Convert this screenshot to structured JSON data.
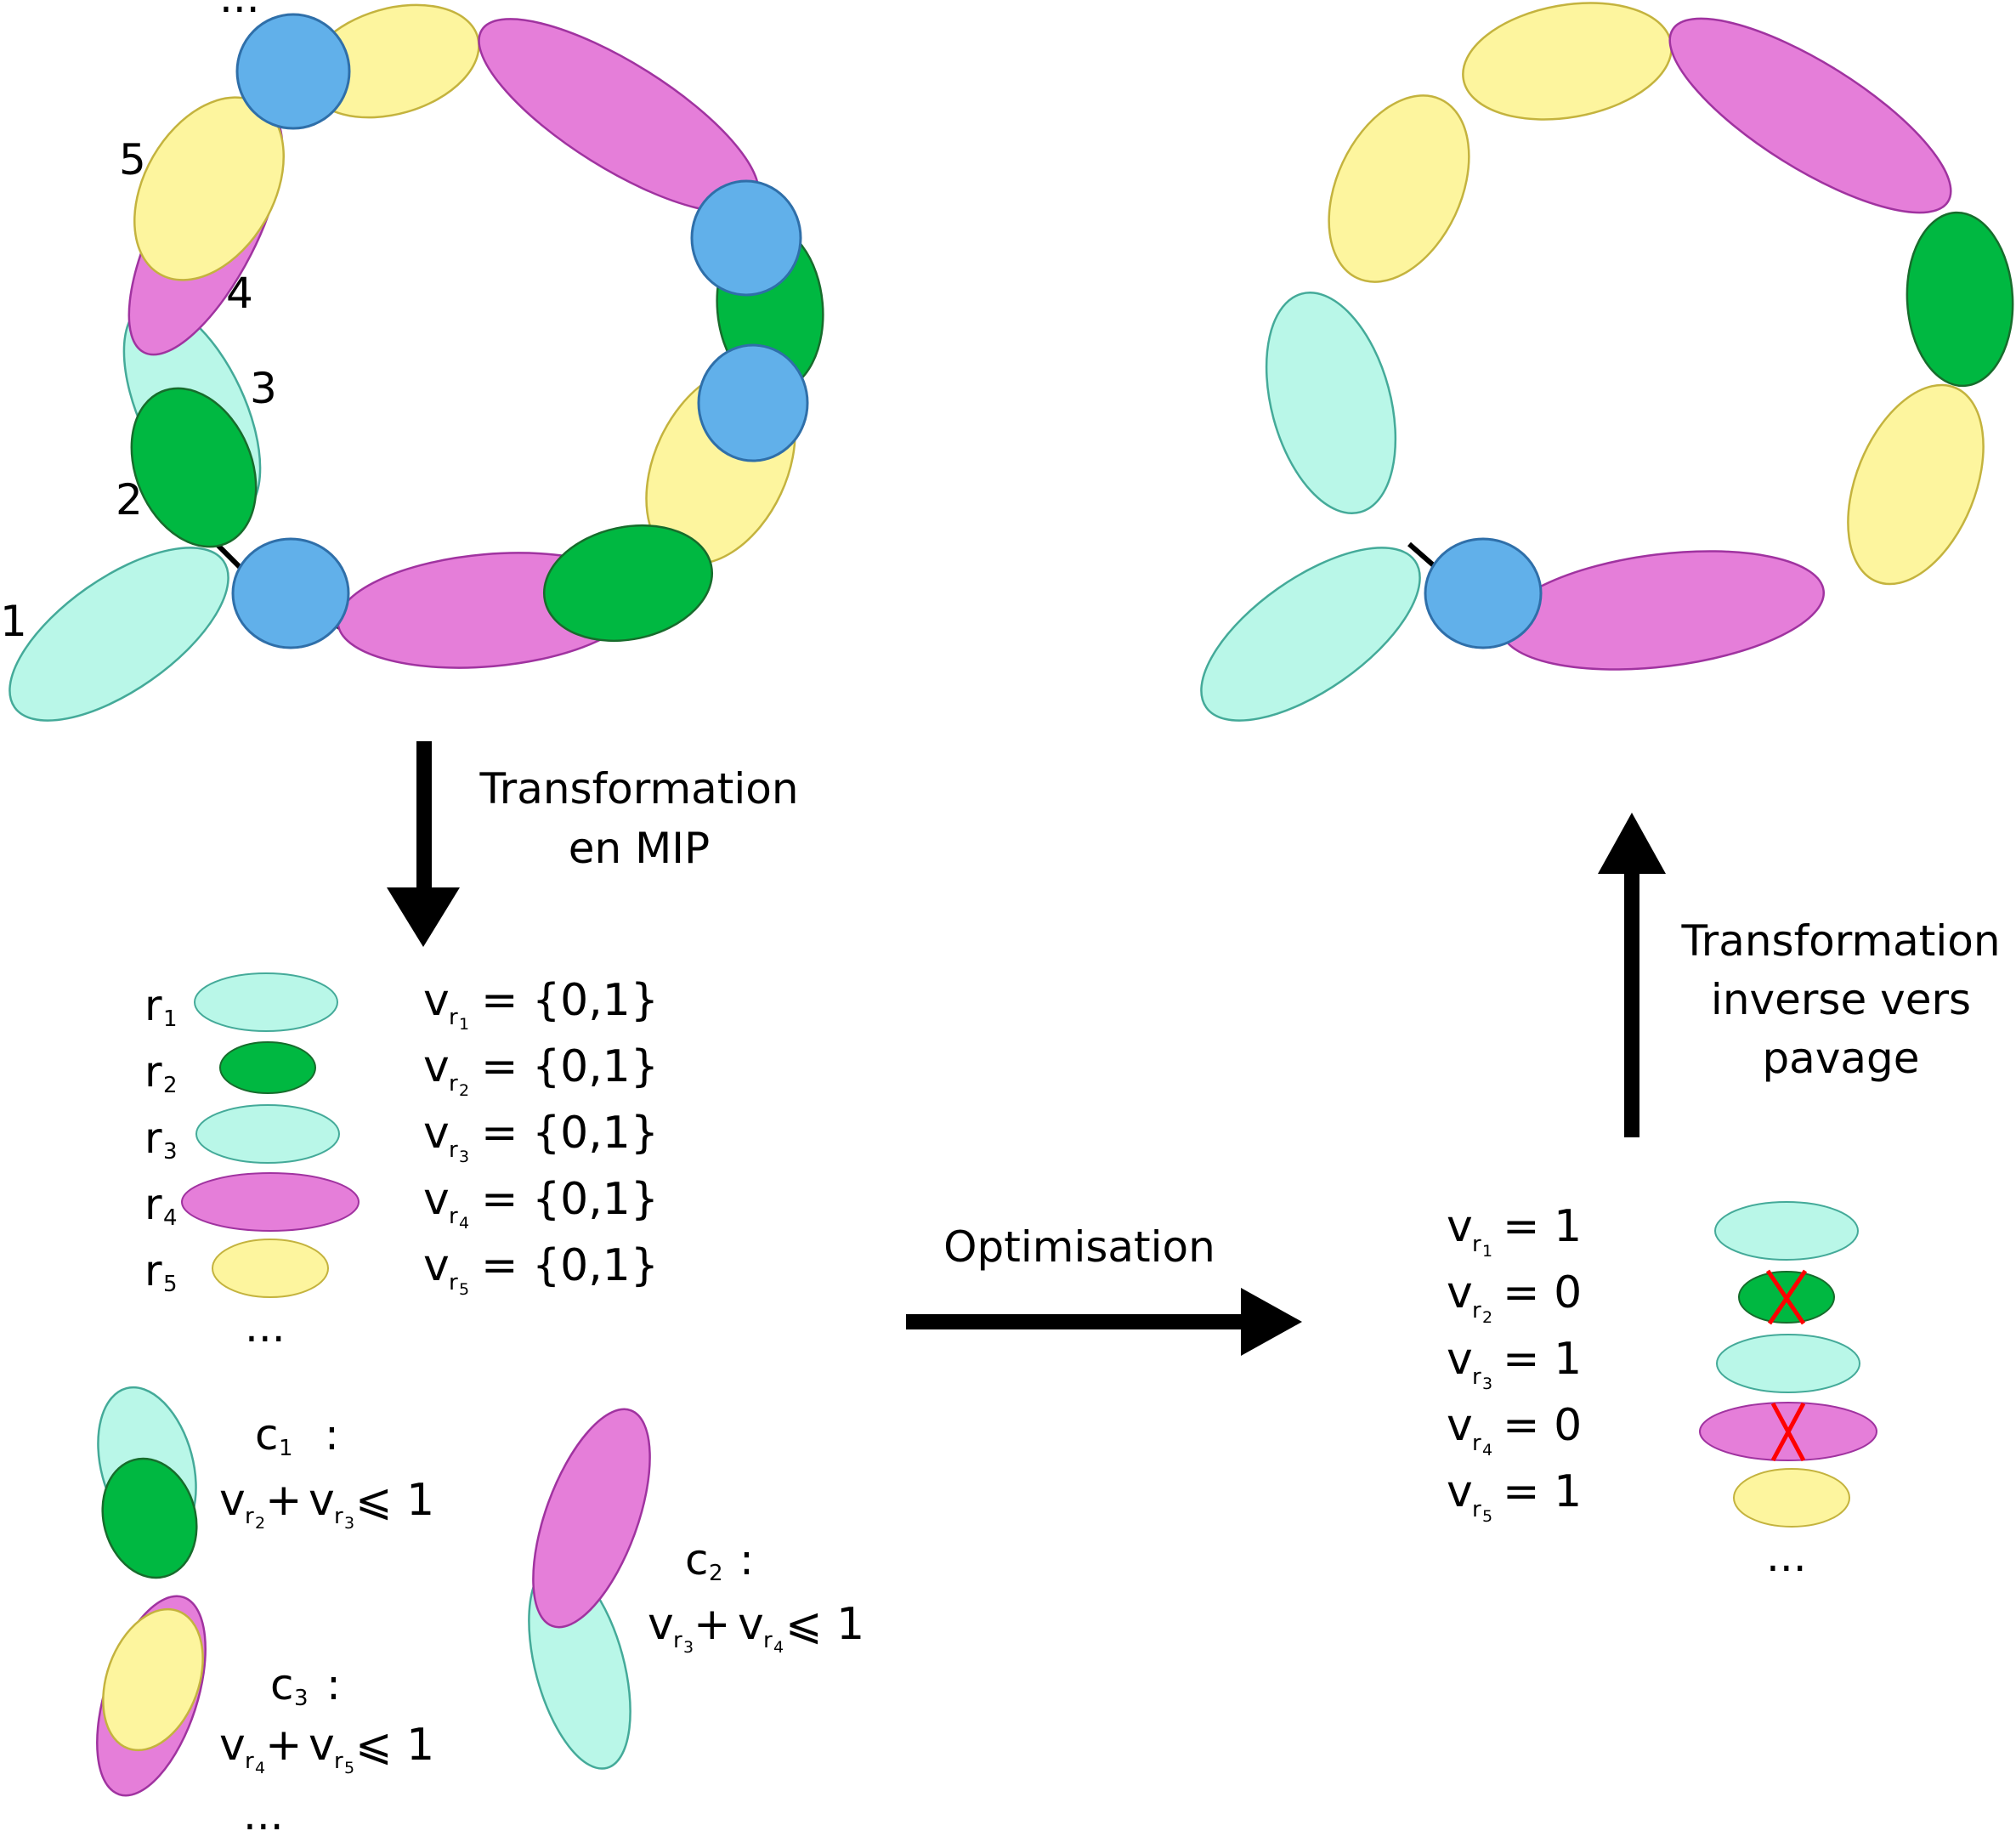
{
  "colors": {
    "cyan_fill": "#b9f7e8",
    "cyan_stroke": "#44aa99",
    "green_fill": "#00b841",
    "green_stroke": "#176c2c",
    "magenta_fill": "#e57ed9",
    "magenta_stroke": "#a033a0",
    "yellow_fill": "#fdf59e",
    "yellow_stroke": "#c4b33e",
    "blue_fill": "#61b0ea",
    "blue_stroke": "#2f6fa9",
    "cross": "#ff0000"
  },
  "left_tiling": {
    "labels": [
      "1",
      "2",
      "3",
      "4",
      "5",
      "..."
    ]
  },
  "step1": {
    "line1": "Transformation",
    "line2": "en MIP"
  },
  "variables": {
    "rows": [
      {
        "r": "r",
        "idx": "1",
        "v": "v",
        "vsub": "r",
        "vsubsub": "1",
        "domain": "= {0,1}"
      },
      {
        "r": "r",
        "idx": "2",
        "v": "v",
        "vsub": "r",
        "vsubsub": "2",
        "domain": "= {0,1}"
      },
      {
        "r": "r",
        "idx": "3",
        "v": "v",
        "vsub": "r",
        "vsubsub": "3",
        "domain": "= {0,1}"
      },
      {
        "r": "r",
        "idx": "4",
        "v": "v",
        "vsub": "r",
        "vsubsub": "4",
        "domain": "= {0,1}"
      },
      {
        "r": "r",
        "idx": "5",
        "v": "v",
        "vsub": "r",
        "vsubsub": "5",
        "domain": "= {0,1}"
      }
    ],
    "ellipsis": "..."
  },
  "constraints": {
    "c1": {
      "name": "c",
      "idx": "1",
      "colon": ":",
      "a": "v",
      "asub": "r",
      "asubsub": "2",
      "plus": "+",
      "b": "v",
      "bsub": "r",
      "bsubsub": "3",
      "rhs": "⩽ 1"
    },
    "c2": {
      "name": "c",
      "idx": "2",
      "colon": ":",
      "a": "v",
      "asub": "r",
      "asubsub": "3",
      "plus": "+",
      "b": "v",
      "bsub": "r",
      "bsubsub": "4",
      "rhs": "⩽ 1"
    },
    "c3": {
      "name": "c",
      "idx": "3",
      "colon": ":",
      "a": "v",
      "asub": "r",
      "asubsub": "4",
      "plus": "+",
      "b": "v",
      "bsub": "r",
      "bsubsub": "5",
      "rhs": "⩽ 1"
    },
    "ellipsis": "..."
  },
  "step2": {
    "label": "Optimisation"
  },
  "solution": {
    "rows": [
      {
        "v": "v",
        "vsub": "r",
        "vsubsub": "1",
        "value": "= 1"
      },
      {
        "v": "v",
        "vsub": "r",
        "vsubsub": "2",
        "value": "= 0"
      },
      {
        "v": "v",
        "vsub": "r",
        "vsubsub": "3",
        "value": "= 1"
      },
      {
        "v": "v",
        "vsub": "r",
        "vsubsub": "4",
        "value": "= 0"
      },
      {
        "v": "v",
        "vsub": "r",
        "vsubsub": "5",
        "value": "= 1"
      }
    ],
    "ellipsis": "..."
  },
  "step3": {
    "line1": "Transformation",
    "line2": "inverse vers",
    "line3": "pavage"
  }
}
